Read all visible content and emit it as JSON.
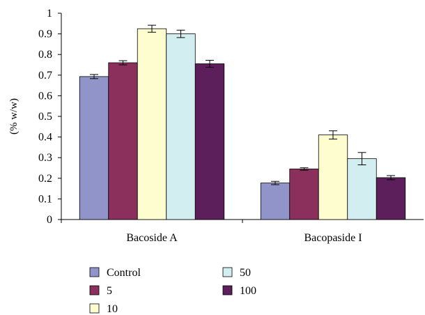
{
  "chart_data": {
    "type": "bar",
    "title": "",
    "xlabel": "",
    "ylabel": "(% w/w)",
    "ylim": [
      0,
      1
    ],
    "yticks": [
      0,
      0.1,
      0.2,
      0.3,
      0.4,
      0.5,
      0.6,
      0.7,
      0.8,
      0.9,
      1
    ],
    "ytick_labels": [
      "0",
      "0.1",
      "0.2",
      "0.3",
      "0.4",
      "0.5",
      "0.6",
      "0.7",
      "0.8",
      "0.9",
      "1"
    ],
    "categories": [
      "Bacoside A",
      "Bacopaside I"
    ],
    "grid": false,
    "legend_position": "bottom",
    "series": [
      {
        "name": "Control",
        "color": "#9194c8",
        "values": [
          0.693,
          0.177
        ],
        "errors": [
          0.01,
          0.008
        ]
      },
      {
        "name": "5",
        "color": "#8b2f5c",
        "values": [
          0.76,
          0.245
        ],
        "errors": [
          0.01,
          0.006
        ]
      },
      {
        "name": "10",
        "color": "#fdfdd0",
        "values": [
          0.925,
          0.41
        ],
        "errors": [
          0.017,
          0.02
        ]
      },
      {
        "name": "50",
        "color": "#d3eef0",
        "values": [
          0.9,
          0.295
        ],
        "errors": [
          0.018,
          0.03
        ]
      },
      {
        "name": "100",
        "color": "#5c1f5c",
        "values": [
          0.755,
          0.203
        ],
        "errors": [
          0.017,
          0.01
        ]
      }
    ]
  }
}
